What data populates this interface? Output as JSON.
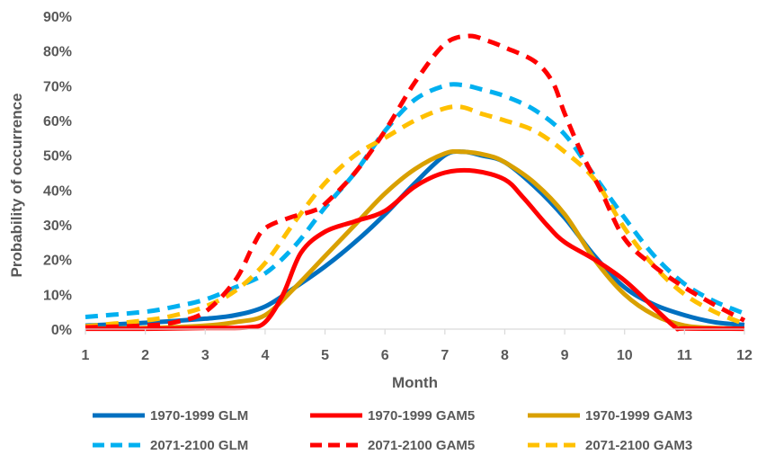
{
  "chart_data": {
    "type": "line",
    "title": "",
    "xlabel": "Month",
    "ylabel": "Probability of occurrence",
    "xlim": [
      1,
      12
    ],
    "ylim": [
      0,
      90
    ],
    "x_ticks": [
      "1",
      "2",
      "3",
      "4",
      "5",
      "6",
      "7",
      "8",
      "9",
      "10",
      "11",
      "12"
    ],
    "y_ticks": [
      "0%",
      "10%",
      "20%",
      "30%",
      "40%",
      "50%",
      "60%",
      "70%",
      "80%",
      "90%"
    ],
    "grid": false,
    "legend_position": "bottom",
    "series": [
      {
        "name": "1970-1999 GLM",
        "color": "#0070C0",
        "style": "solid",
        "points": [
          [
            1,
            1
          ],
          [
            2,
            1.8
          ],
          [
            3,
            3
          ],
          [
            3.5,
            4
          ],
          [
            4,
            6.5
          ],
          [
            4.5,
            12
          ],
          [
            5,
            18
          ],
          [
            5.5,
            25
          ],
          [
            6,
            33
          ],
          [
            6.5,
            42
          ],
          [
            7,
            50
          ],
          [
            7.3,
            51
          ],
          [
            7.6,
            50
          ],
          [
            8,
            48
          ],
          [
            8.5,
            41
          ],
          [
            9,
            32
          ],
          [
            9.5,
            21
          ],
          [
            10,
            12
          ],
          [
            10.5,
            7
          ],
          [
            11,
            4
          ],
          [
            11.5,
            2
          ],
          [
            12,
            1.2
          ]
        ]
      },
      {
        "name": "1970-1999 GAM5",
        "color": "#FF0000",
        "style": "solid",
        "points": [
          [
            1,
            0.1
          ],
          [
            2,
            0.1
          ],
          [
            3,
            0.3
          ],
          [
            3.7,
            0.5
          ],
          [
            4,
            2
          ],
          [
            4.3,
            10
          ],
          [
            4.6,
            22
          ],
          [
            5,
            28
          ],
          [
            5.5,
            31
          ],
          [
            6,
            34
          ],
          [
            6.5,
            41
          ],
          [
            7,
            45
          ],
          [
            7.5,
            45.5
          ],
          [
            8,
            43
          ],
          [
            8.3,
            38
          ],
          [
            8.7,
            30
          ],
          [
            9,
            25
          ],
          [
            9.5,
            20
          ],
          [
            10,
            14
          ],
          [
            10.5,
            6
          ],
          [
            10.85,
            0.5
          ],
          [
            11,
            0.2
          ],
          [
            12,
            0.1
          ]
        ]
      },
      {
        "name": "1970-1999 GAM3",
        "color": "#D9A000",
        "style": "solid",
        "points": [
          [
            1,
            0.2
          ],
          [
            2,
            0.3
          ],
          [
            3,
            1
          ],
          [
            3.5,
            2
          ],
          [
            4,
            4
          ],
          [
            4.5,
            12
          ],
          [
            5,
            21
          ],
          [
            5.5,
            30
          ],
          [
            6,
            39
          ],
          [
            6.5,
            46
          ],
          [
            7,
            50.5
          ],
          [
            7.3,
            51
          ],
          [
            7.7,
            50
          ],
          [
            8,
            48
          ],
          [
            8.5,
            42
          ],
          [
            9,
            33
          ],
          [
            9.5,
            20
          ],
          [
            10,
            10
          ],
          [
            10.5,
            4
          ],
          [
            11,
            1
          ],
          [
            11.5,
            0.3
          ],
          [
            12,
            0.1
          ]
        ]
      },
      {
        "name": "2071-2100 GLM",
        "color": "#00B0F0",
        "style": "dashed",
        "points": [
          [
            1,
            3.5
          ],
          [
            2,
            5
          ],
          [
            2.5,
            6.5
          ],
          [
            3,
            8.5
          ],
          [
            3.5,
            12
          ],
          [
            4,
            16
          ],
          [
            4.5,
            24
          ],
          [
            5,
            35
          ],
          [
            5.5,
            45
          ],
          [
            6,
            57
          ],
          [
            6.5,
            66
          ],
          [
            7,
            70
          ],
          [
            7.3,
            70.2
          ],
          [
            7.6,
            69
          ],
          [
            8,
            67
          ],
          [
            8.5,
            63
          ],
          [
            9,
            56
          ],
          [
            9.5,
            44
          ],
          [
            10,
            32
          ],
          [
            10.5,
            21
          ],
          [
            11,
            13
          ],
          [
            11.5,
            8
          ],
          [
            12,
            4.5
          ]
        ]
      },
      {
        "name": "2071-2100 GAM5",
        "color": "#FF0000",
        "style": "dashed",
        "points": [
          [
            1,
            0.5
          ],
          [
            2,
            1
          ],
          [
            2.5,
            2
          ],
          [
            3,
            5
          ],
          [
            3.5,
            14
          ],
          [
            3.8,
            24
          ],
          [
            4,
            29
          ],
          [
            4.4,
            32
          ],
          [
            4.8,
            34
          ],
          [
            5,
            36
          ],
          [
            5.5,
            45
          ],
          [
            6,
            57
          ],
          [
            6.5,
            71
          ],
          [
            7,
            82
          ],
          [
            7.4,
            84.3
          ],
          [
            7.7,
            83
          ],
          [
            8,
            81
          ],
          [
            8.5,
            77
          ],
          [
            8.8,
            71
          ],
          [
            9,
            62
          ],
          [
            9.3,
            50
          ],
          [
            9.6,
            40
          ],
          [
            10,
            26
          ],
          [
            10.5,
            18
          ],
          [
            11,
            12
          ],
          [
            11.5,
            7
          ],
          [
            12,
            2.5
          ]
        ]
      },
      {
        "name": "2071-2100 GAM3",
        "color": "#FFC000",
        "style": "dashed",
        "points": [
          [
            1,
            0.8
          ],
          [
            2,
            2.5
          ],
          [
            2.5,
            4
          ],
          [
            3,
            6.5
          ],
          [
            3.5,
            11
          ],
          [
            4,
            19
          ],
          [
            4.5,
            31
          ],
          [
            5,
            42
          ],
          [
            5.5,
            50
          ],
          [
            6,
            55
          ],
          [
            6.5,
            60
          ],
          [
            7,
            63.5
          ],
          [
            7.3,
            63.8
          ],
          [
            7.6,
            62
          ],
          [
            8,
            60
          ],
          [
            8.5,
            57
          ],
          [
            9,
            51
          ],
          [
            9.5,
            43
          ],
          [
            10,
            29
          ],
          [
            10.5,
            18
          ],
          [
            11,
            10
          ],
          [
            11.5,
            5
          ],
          [
            12,
            1.5
          ]
        ]
      }
    ]
  }
}
